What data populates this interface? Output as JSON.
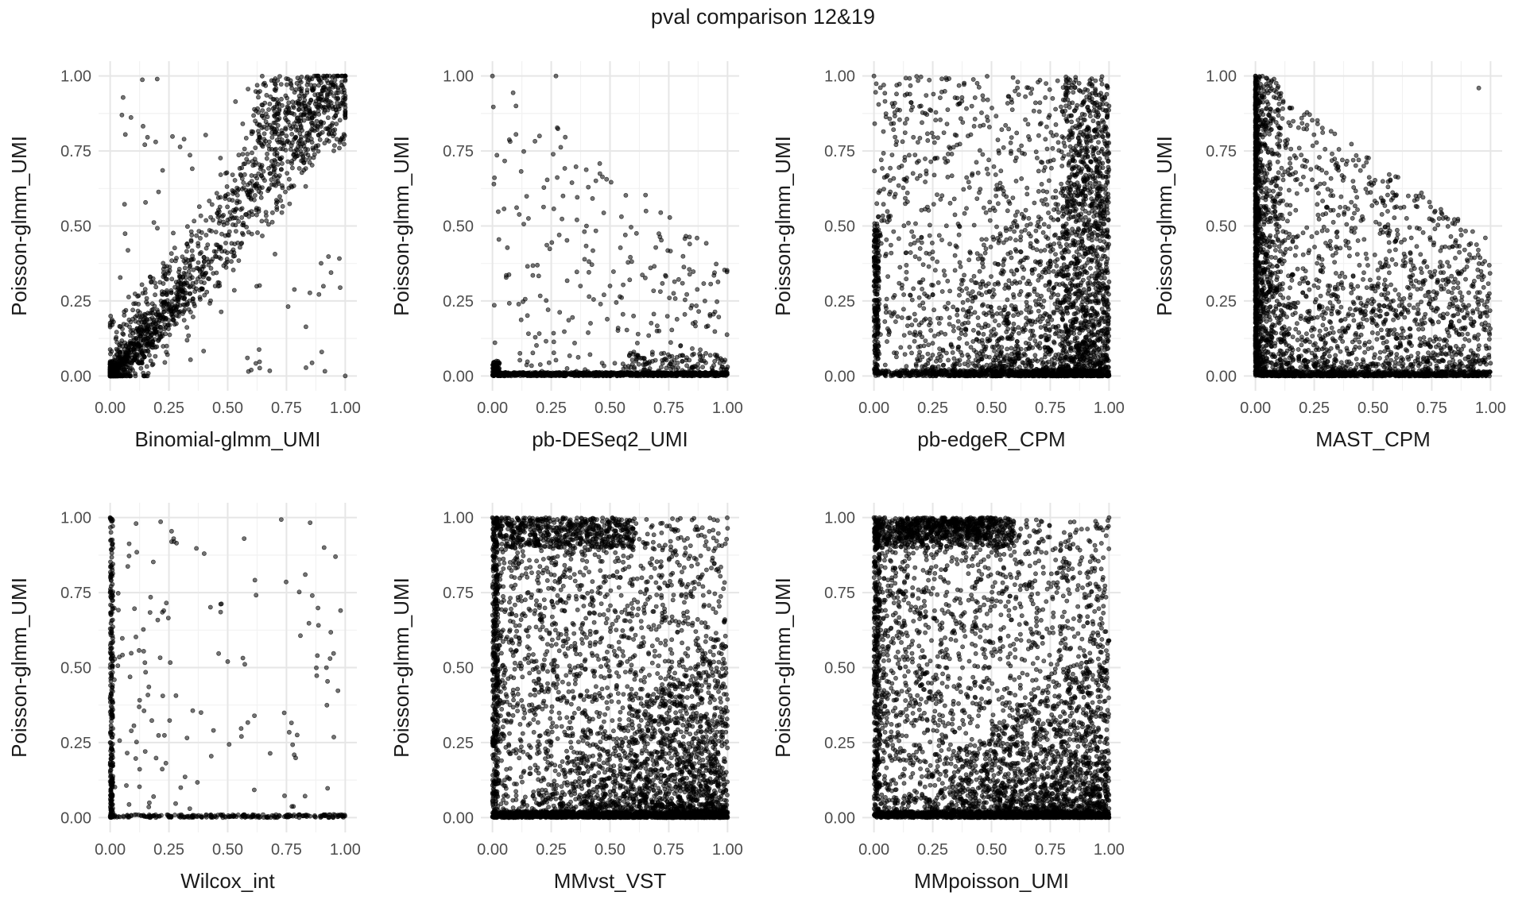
{
  "figure": {
    "title": "pval comparison 12&19"
  },
  "chart_data": [
    {
      "type": "scatter",
      "xlabel": "Binomial-glmm_UMI",
      "ylabel": "Poisson-glmm_UMI",
      "xlim": [
        0,
        1
      ],
      "ylim": [
        0,
        1
      ],
      "xticks": [
        "0.00",
        "0.25",
        "0.50",
        "0.75",
        "1.00"
      ],
      "yticks": [
        "0.00",
        "0.25",
        "0.50",
        "0.75",
        "1.00"
      ],
      "grid": true,
      "pattern": "diagonal",
      "points": [
        [
          0.02,
          0.01
        ],
        [
          0.04,
          0.03
        ],
        [
          0.06,
          0.05
        ],
        [
          0.08,
          0.06
        ],
        [
          0.1,
          0.09
        ],
        [
          0.12,
          0.1
        ],
        [
          0.15,
          0.14
        ],
        [
          0.18,
          0.16
        ],
        [
          0.2,
          0.22
        ],
        [
          0.25,
          0.24
        ],
        [
          0.3,
          0.32
        ],
        [
          0.35,
          0.4
        ],
        [
          0.4,
          0.38
        ],
        [
          0.45,
          0.48
        ],
        [
          0.5,
          0.52
        ],
        [
          0.55,
          0.58
        ],
        [
          0.6,
          0.62
        ],
        [
          0.65,
          0.66
        ],
        [
          0.7,
          0.74
        ],
        [
          0.75,
          0.8
        ],
        [
          0.8,
          0.82
        ],
        [
          0.85,
          0.88
        ],
        [
          0.9,
          0.93
        ],
        [
          0.95,
          0.97
        ],
        [
          1.0,
          1.0
        ],
        [
          0.05,
          0.87
        ],
        [
          0.2,
          0.99
        ],
        [
          0.6,
          0.02
        ],
        [
          0.9,
          0.08
        ],
        [
          1.0,
          0.0
        ]
      ]
    },
    {
      "type": "scatter",
      "xlabel": "pb-DESeq2_UMI",
      "ylabel": "Poisson-glmm_UMI",
      "xlim": [
        0,
        1
      ],
      "ylim": [
        0,
        1
      ],
      "xticks": [
        "0.00",
        "0.25",
        "0.50",
        "0.75",
        "1.00"
      ],
      "yticks": [
        "0.00",
        "0.25",
        "0.50",
        "0.75",
        "1.00"
      ],
      "grid": true,
      "pattern": "floor",
      "points": [
        [
          0.0,
          1.0
        ],
        [
          0.27,
          1.0
        ],
        [
          0.1,
          0.9
        ],
        [
          0.2,
          0.8
        ],
        [
          0.3,
          0.6
        ],
        [
          0.4,
          0.5
        ],
        [
          0.5,
          0.3
        ],
        [
          0.6,
          0.2
        ],
        [
          0.7,
          0.15
        ],
        [
          0.8,
          0.1
        ],
        [
          0.9,
          0.05
        ],
        [
          1.0,
          0.03
        ],
        [
          0.05,
          0.0
        ],
        [
          0.5,
          0.0
        ],
        [
          0.95,
          0.0
        ]
      ]
    },
    {
      "type": "scatter",
      "xlabel": "pb-edgeR_CPM",
      "ylabel": "Poisson-glmm_UMI",
      "xlim": [
        0,
        1
      ],
      "ylim": [
        0,
        1
      ],
      "xticks": [
        "0.00",
        "0.25",
        "0.50",
        "0.75",
        "1.00"
      ],
      "yticks": [
        "0.00",
        "0.25",
        "0.50",
        "0.75",
        "1.00"
      ],
      "grid": true,
      "pattern": "wedge",
      "points": [
        [
          0.0,
          1.0
        ],
        [
          0.2,
          0.9
        ],
        [
          0.4,
          0.8
        ],
        [
          0.6,
          0.95
        ],
        [
          0.8,
          0.7
        ],
        [
          0.95,
          0.5
        ],
        [
          0.9,
          0.2
        ],
        [
          0.8,
          0.1
        ],
        [
          0.6,
          0.05
        ],
        [
          0.3,
          0.02
        ],
        [
          0.05,
          0.0
        ],
        [
          1.0,
          0.9
        ]
      ]
    },
    {
      "type": "scatter",
      "xlabel": "MAST_CPM",
      "ylabel": "Poisson-glmm_UMI",
      "xlim": [
        0,
        1
      ],
      "ylim": [
        0,
        1
      ],
      "xticks": [
        "0.00",
        "0.25",
        "0.50",
        "0.75",
        "1.00"
      ],
      "yticks": [
        "0.00",
        "0.25",
        "0.50",
        "0.75",
        "1.00"
      ],
      "grid": true,
      "pattern": "leftwall",
      "points": [
        [
          0.0,
          1.0
        ],
        [
          0.0,
          0.8
        ],
        [
          0.0,
          0.5
        ],
        [
          0.02,
          0.2
        ],
        [
          0.05,
          0.05
        ],
        [
          0.2,
          0.7
        ],
        [
          0.4,
          0.4
        ],
        [
          0.6,
          0.2
        ],
        [
          0.8,
          0.05
        ],
        [
          0.95,
          0.96
        ],
        [
          0.98,
          0.0
        ]
      ]
    },
    {
      "type": "scatter",
      "xlabel": "Wilcox_int",
      "ylabel": "Poisson-glmm_UMI",
      "xlim": [
        0,
        1
      ],
      "ylim": [
        0,
        1
      ],
      "xticks": [
        "0.00",
        "0.25",
        "0.50",
        "0.75",
        "1.00"
      ],
      "yticks": [
        "0.00",
        "0.25",
        "0.50",
        "0.75",
        "1.00"
      ],
      "grid": true,
      "pattern": "sparse",
      "points": [
        [
          0.0,
          1.0
        ],
        [
          0.0,
          0.75
        ],
        [
          0.0,
          0.5
        ],
        [
          0.0,
          0.25
        ],
        [
          0.01,
          0.02
        ],
        [
          0.11,
          0.98
        ],
        [
          0.27,
          0.93
        ],
        [
          0.4,
          0.88
        ],
        [
          0.57,
          0.93
        ],
        [
          0.83,
          0.81
        ],
        [
          0.91,
          0.9
        ],
        [
          0.98,
          0.69
        ],
        [
          0.5,
          0.52
        ],
        [
          0.3,
          0.1
        ],
        [
          0.7,
          0.0
        ]
      ]
    },
    {
      "type": "scatter",
      "xlabel": "MMvst_VST",
      "ylabel": "Poisson-glmm_UMI",
      "xlim": [
        0,
        1
      ],
      "ylim": [
        0,
        1
      ],
      "xticks": [
        "0.00",
        "0.25",
        "0.50",
        "0.75",
        "1.00"
      ],
      "yticks": [
        "0.00",
        "0.25",
        "0.50",
        "0.75",
        "1.00"
      ],
      "grid": true,
      "pattern": "dense",
      "points": [
        [
          0.0,
          1.0
        ],
        [
          0.3,
          1.0
        ],
        [
          0.5,
          0.9
        ],
        [
          0.2,
          0.7
        ],
        [
          0.4,
          0.6
        ],
        [
          0.7,
          0.4
        ],
        [
          0.9,
          0.25
        ],
        [
          0.8,
          0.1
        ],
        [
          0.6,
          0.05
        ],
        [
          0.3,
          0.01
        ],
        [
          0.05,
          0.0
        ],
        [
          1.0,
          0.0
        ]
      ]
    },
    {
      "type": "scatter",
      "xlabel": "MMpoisson_UMI",
      "ylabel": "Poisson-glmm_UMI",
      "xlim": [
        0,
        1
      ],
      "ylim": [
        0,
        1
      ],
      "xticks": [
        "0.00",
        "0.25",
        "0.50",
        "0.75",
        "1.00"
      ],
      "yticks": [
        "0.00",
        "0.25",
        "0.50",
        "0.75",
        "1.00"
      ],
      "grid": true,
      "pattern": "dense-top",
      "points": [
        [
          0.0,
          1.0
        ],
        [
          0.3,
          1.0
        ],
        [
          0.45,
          0.95
        ],
        [
          1.0,
          1.0
        ],
        [
          0.2,
          0.7
        ],
        [
          0.5,
          0.55
        ],
        [
          0.7,
          0.35
        ],
        [
          0.9,
          0.2
        ],
        [
          0.8,
          0.08
        ],
        [
          0.5,
          0.02
        ],
        [
          0.1,
          0.0
        ],
        [
          1.0,
          0.0
        ]
      ]
    }
  ]
}
